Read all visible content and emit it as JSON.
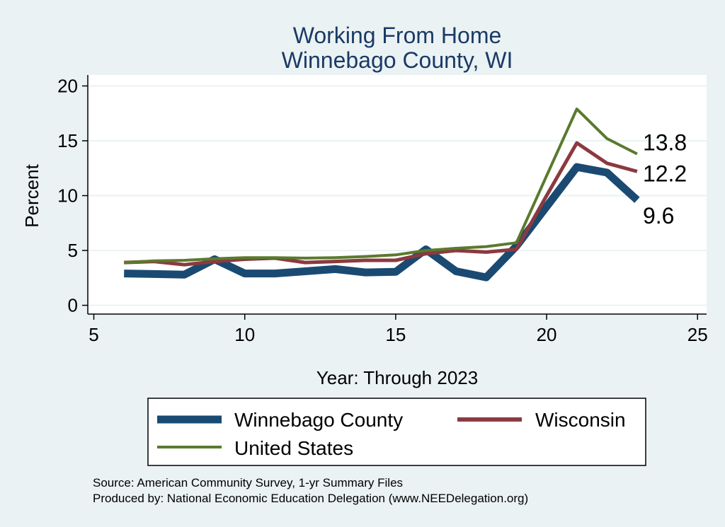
{
  "chart_data": {
    "type": "line",
    "title": [
      "Working From Home",
      "Winnebago County, WI"
    ],
    "xlabel": "Year: Through 2023",
    "ylabel": "Percent",
    "xlim": [
      4.8,
      25.3
    ],
    "ylim": [
      -0.8,
      21
    ],
    "xticks": [
      5,
      10,
      15,
      20,
      25
    ],
    "yticks": [
      0,
      5,
      10,
      15,
      20
    ],
    "grid": true,
    "legend_position": "bottom",
    "series": [
      {
        "name": "Winnebago County",
        "color": "#1a4a72",
        "x": [
          6,
          7,
          8,
          9,
          10,
          11,
          12,
          13,
          14,
          15,
          16,
          17,
          18,
          19,
          20,
          21,
          22,
          23
        ],
        "values": [
          2.9,
          2.85,
          2.8,
          4.2,
          2.9,
          2.9,
          3.1,
          3.3,
          3.0,
          3.05,
          5.1,
          3.1,
          2.55,
          5.4,
          9.0,
          12.6,
          12.1,
          9.6
        ],
        "end_label": "9.6"
      },
      {
        "name": "Wisconsin",
        "color": "#8b3a3f",
        "x": [
          6,
          7,
          8,
          9,
          10,
          11,
          12,
          13,
          14,
          15,
          16,
          17,
          18,
          19,
          20,
          21,
          22,
          23
        ],
        "values": [
          3.9,
          4.0,
          3.7,
          4.0,
          4.2,
          4.3,
          3.9,
          4.0,
          4.1,
          4.1,
          4.7,
          5.0,
          4.85,
          5.1,
          10.0,
          14.8,
          12.95,
          12.2
        ],
        "end_label": "12.2"
      },
      {
        "name": "United States",
        "color": "#5a7a2e",
        "x": [
          6,
          7,
          8,
          9,
          10,
          11,
          12,
          13,
          14,
          15,
          16,
          17,
          18,
          19,
          20,
          21,
          22,
          23
        ],
        "values": [
          3.9,
          4.05,
          4.1,
          4.25,
          4.35,
          4.35,
          4.3,
          4.35,
          4.45,
          4.6,
          5.0,
          5.2,
          5.35,
          5.7,
          11.8,
          17.9,
          15.2,
          13.8
        ],
        "end_label": "13.8"
      }
    ]
  },
  "notes": [
    "Source: American Community Survey, 1-yr Summary Files",
    "Produced by: National Economic Education Delegation (www.NEEDelegation.org)"
  ]
}
